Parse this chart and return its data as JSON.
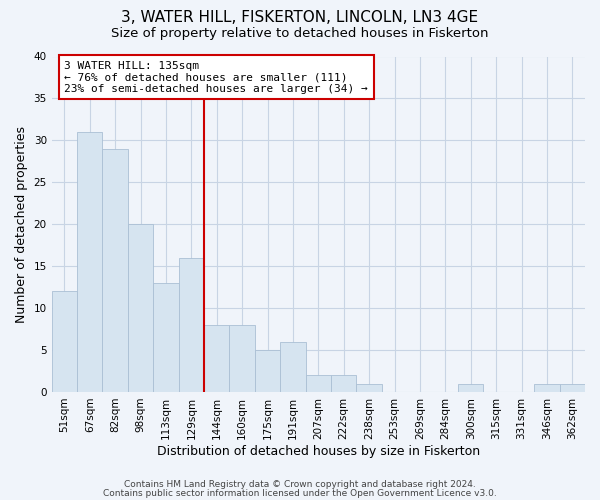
{
  "title": "3, WATER HILL, FISKERTON, LINCOLN, LN3 4GE",
  "subtitle": "Size of property relative to detached houses in Fiskerton",
  "xlabel": "Distribution of detached houses by size in Fiskerton",
  "ylabel": "Number of detached properties",
  "bin_labels": [
    "51sqm",
    "67sqm",
    "82sqm",
    "98sqm",
    "113sqm",
    "129sqm",
    "144sqm",
    "160sqm",
    "175sqm",
    "191sqm",
    "207sqm",
    "222sqm",
    "238sqm",
    "253sqm",
    "269sqm",
    "284sqm",
    "300sqm",
    "315sqm",
    "331sqm",
    "346sqm",
    "362sqm"
  ],
  "bar_heights": [
    12,
    31,
    29,
    20,
    13,
    16,
    8,
    8,
    5,
    6,
    2,
    2,
    1,
    0,
    0,
    0,
    1,
    0,
    0,
    1,
    1
  ],
  "bar_color": "#d6e4f0",
  "bar_edge_color": "#aabfd4",
  "vline_x_idx": 6,
  "vline_color": "#cc0000",
  "annotation_line1": "3 WATER HILL: 135sqm",
  "annotation_line2": "← 76% of detached houses are smaller (111)",
  "annotation_line3": "23% of semi-detached houses are larger (34) →",
  "annotation_box_color": "white",
  "annotation_box_edge_color": "#cc0000",
  "ylim": [
    0,
    40
  ],
  "yticks": [
    0,
    5,
    10,
    15,
    20,
    25,
    30,
    35,
    40
  ],
  "footer_line1": "Contains HM Land Registry data © Crown copyright and database right 2024.",
  "footer_line2": "Contains public sector information licensed under the Open Government Licence v3.0.",
  "bg_color": "#f0f4fa",
  "grid_color": "#c8d4e4",
  "title_fontsize": 11,
  "subtitle_fontsize": 9.5,
  "axis_label_fontsize": 9,
  "tick_fontsize": 7.5,
  "annotation_fontsize": 8,
  "footer_fontsize": 6.5
}
